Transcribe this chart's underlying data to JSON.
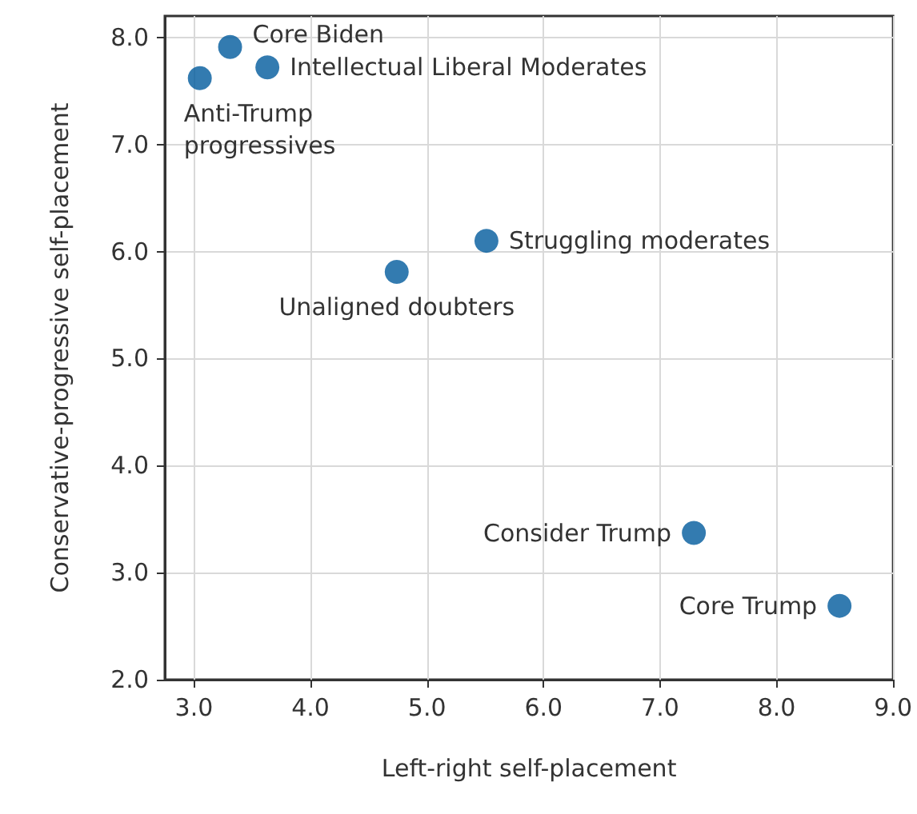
{
  "chart_data": {
    "type": "scatter",
    "xlabel": "Left-right self-placement",
    "ylabel": "Conservative-progressive self-placement",
    "x": [
      3.31,
      3.63,
      3.05,
      5.51,
      4.74,
      7.29,
      8.54
    ],
    "series": [
      {
        "color": "#005a9c",
        "values": [
          7.91,
          7.72,
          7.62,
          6.1,
          5.81,
          3.37,
          2.69
        ]
      }
    ],
    "xlim": [
      2.75,
      9.0
    ],
    "xticks": [
      {
        "value": 3,
        "label": "3.0"
      },
      {
        "value": 4,
        "label": "4.0"
      },
      {
        "value": 5,
        "label": "5.0"
      },
      {
        "value": 6,
        "label": "6.0"
      },
      {
        "value": 7,
        "label": "7.0"
      },
      {
        "value": 8,
        "label": "8.0"
      },
      {
        "value": 9,
        "label": "9.0"
      }
    ],
    "ylim": [
      2.0,
      8.2
    ],
    "yticks": [
      {
        "value": 2,
        "label": "2.0"
      },
      {
        "value": 3,
        "label": "3.0"
      },
      {
        "value": 4,
        "label": "4.0"
      },
      {
        "value": 5,
        "label": "5.0"
      },
      {
        "value": 6,
        "label": "6.0"
      },
      {
        "value": 7,
        "label": "7.0"
      },
      {
        "value": 8,
        "label": "8.0"
      }
    ],
    "grid": true,
    "marker": "circle",
    "annotations": [
      {
        "text": "Core Biden",
        "x": 3.31,
        "y": 7.91
      },
      {
        "text": "Intellectual Liberal Moderates",
        "x": 3.63,
        "y": 7.72
      },
      {
        "text": "Anti-Trump\nprogressives",
        "x": 3.05,
        "y": 7.62
      },
      {
        "text": "Struggling moderates",
        "x": 5.51,
        "y": 6.1
      },
      {
        "text": "Unaligned doubters",
        "x": 4.74,
        "y": 5.81
      },
      {
        "text": "Consider Trump",
        "x": 7.29,
        "y": 3.37
      },
      {
        "text": "Core Trump",
        "x": 8.54,
        "y": 2.69
      }
    ]
  }
}
